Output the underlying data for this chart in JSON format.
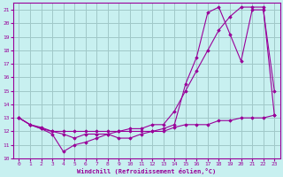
{
  "background_color": "#c8f0f0",
  "grid_color": "#a0c8c8",
  "line_color": "#990099",
  "xlabel": "Windchill (Refroidissement éolien,°C)",
  "xlim": [
    -0.5,
    23.5
  ],
  "ylim": [
    10,
    21.5
  ],
  "yticks": [
    10,
    11,
    12,
    13,
    14,
    15,
    16,
    17,
    18,
    19,
    20,
    21
  ],
  "xticks": [
    0,
    1,
    2,
    3,
    4,
    5,
    6,
    7,
    8,
    9,
    10,
    11,
    12,
    13,
    14,
    15,
    16,
    17,
    18,
    19,
    20,
    21,
    22,
    23
  ],
  "line1_x": [
    0,
    1,
    2,
    3,
    4,
    5,
    6,
    7,
    8,
    9,
    10,
    11,
    12,
    13,
    14,
    15,
    16,
    17,
    18,
    19,
    20,
    21,
    22,
    23
  ],
  "line1_y": [
    13.0,
    12.5,
    12.3,
    12.0,
    12.0,
    12.0,
    12.0,
    12.0,
    12.0,
    12.0,
    12.0,
    12.0,
    12.0,
    12.0,
    12.3,
    12.5,
    12.5,
    12.5,
    12.8,
    12.8,
    13.0,
    13.0,
    13.0,
    13.2
  ],
  "line2_x": [
    0,
    1,
    2,
    3,
    4,
    5,
    6,
    7,
    8,
    9,
    10,
    11,
    12,
    13,
    14,
    15,
    16,
    17,
    18,
    19,
    20,
    21,
    22,
    23
  ],
  "line2_y": [
    13.0,
    12.5,
    12.2,
    12.0,
    11.8,
    11.5,
    11.8,
    11.8,
    11.8,
    12.0,
    12.2,
    12.2,
    12.5,
    12.5,
    13.5,
    15.0,
    16.5,
    18.0,
    19.5,
    20.5,
    21.2,
    21.2,
    21.2,
    13.2
  ],
  "line3_x": [
    0,
    1,
    2,
    3,
    4,
    5,
    6,
    7,
    8,
    9,
    10,
    11,
    12,
    13,
    14,
    15,
    16,
    17,
    18,
    19,
    20,
    21,
    22,
    23
  ],
  "line3_y": [
    13.0,
    12.5,
    12.2,
    11.8,
    10.5,
    11.0,
    11.2,
    11.5,
    11.8,
    11.5,
    11.5,
    11.8,
    12.0,
    12.2,
    12.5,
    15.5,
    17.5,
    20.8,
    21.2,
    19.2,
    17.2,
    21.0,
    21.0,
    15.0
  ]
}
